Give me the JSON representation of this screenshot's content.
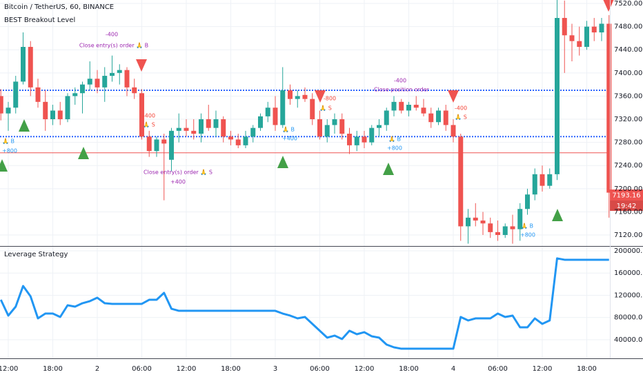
{
  "header": {
    "title": "Bitcoin / TetherUS, 60, BINANCE",
    "indicator": "BEST Breakout Level"
  },
  "price_tag": {
    "price": "7193.16",
    "countdown": "19:42"
  },
  "annotations": [
    {
      "text": "-400",
      "color": "#9c27b0"
    },
    {
      "text": "Close entry(s) order 🙏 B",
      "color": "#9c27b0"
    },
    {
      "text": "🙏 B",
      "color": "#2196f3"
    },
    {
      "text": "+800",
      "color": "#2196f3"
    },
    {
      "text": "-400",
      "color": "#f44336"
    },
    {
      "text": "🙏 S",
      "color": "#f44336"
    },
    {
      "text": "Close entry(s) order 🙏 S",
      "color": "#9c27b0"
    },
    {
      "text": "+400",
      "color": "#9c27b0"
    },
    {
      "text": "-800",
      "color": "#f44336"
    },
    {
      "text": "🙏 S",
      "color": "#f44336"
    },
    {
      "text": "🙏 B",
      "color": "#2196f3"
    },
    {
      "text": "+400",
      "color": "#2196f3"
    },
    {
      "text": "-400",
      "color": "#9c27b0"
    },
    {
      "text": "Close position order",
      "color": "#9c27b0"
    },
    {
      "text": "🙏 B",
      "color": "#2196f3"
    },
    {
      "text": "+800",
      "color": "#2196f3"
    },
    {
      "text": "-400",
      "color": "#f44336"
    },
    {
      "text": "🙏 S",
      "color": "#f44336"
    },
    {
      "text": "🙏 B",
      "color": "#2196f3"
    },
    {
      "text": "+800",
      "color": "#2196f3"
    }
  ],
  "chart_data": [
    {
      "type": "candlestick",
      "categories": [
        null,
        "12:00",
        null,
        null,
        null,
        null,
        null,
        "18:00",
        null,
        null,
        null,
        null,
        null,
        "2",
        null,
        null,
        null,
        null,
        null,
        "06:00",
        null,
        null,
        null,
        null,
        null,
        "12:00",
        null,
        null,
        null,
        null,
        null,
        "18:00",
        null,
        null,
        null,
        null,
        null,
        "3",
        null,
        null,
        null,
        null,
        null,
        "06:00",
        null,
        null,
        null,
        null,
        null,
        "12:00",
        null,
        null,
        null,
        null,
        null,
        "18:00",
        null,
        null,
        null,
        null,
        null,
        "4",
        null,
        null,
        null,
        null,
        null,
        "06:00",
        null,
        null,
        null,
        null,
        null,
        "12:00",
        null,
        null,
        null,
        null,
        null,
        "18:00",
        null,
        null,
        null
      ],
      "open": [
        7360,
        7330,
        7340,
        7385,
        7445,
        7375,
        7350,
        7320,
        7335,
        7320,
        7360,
        7365,
        7380,
        7390,
        7375,
        7395,
        7400,
        7405,
        7375,
        7365,
        7290,
        7265,
        7285,
        7250,
        7300,
        7305,
        7300,
        7295,
        7320,
        7305,
        7320,
        7290,
        7285,
        7275,
        7290,
        7305,
        7325,
        7340,
        7310,
        7370,
        7355,
        7362,
        7355,
        7320,
        7290,
        7310,
        7320,
        7295,
        7275,
        7290,
        7280,
        7305,
        7310,
        7335,
        7350,
        7335,
        7345,
        7340,
        7330,
        7315,
        7335,
        7310,
        7290,
        7135,
        7150,
        7145,
        7140,
        7125,
        7120,
        7135,
        7130,
        7165,
        7190,
        7225,
        7205,
        7225,
        7495,
        7465,
        7455,
        7445,
        7480,
        7470,
        7485
      ],
      "high": [
        7372,
        7350,
        7395,
        7470,
        7455,
        7390,
        7370,
        7345,
        7350,
        7365,
        7375,
        7385,
        7420,
        7405,
        7410,
        7430,
        7415,
        7410,
        7390,
        7372,
        7300,
        7290,
        7295,
        7305,
        7330,
        7320,
        7320,
        7330,
        7345,
        7335,
        7325,
        7300,
        7295,
        7300,
        7310,
        7330,
        7350,
        7360,
        7410,
        7380,
        7370,
        7375,
        7365,
        7335,
        7320,
        7330,
        7330,
        7305,
        7300,
        7300,
        7310,
        7320,
        7340,
        7360,
        7355,
        7350,
        7360,
        7355,
        7340,
        7340,
        7345,
        7320,
        7295,
        7165,
        7175,
        7160,
        7150,
        7145,
        7140,
        7155,
        7175,
        7200,
        7235,
        7240,
        7235,
        7540,
        7525,
        7485,
        7480,
        7490,
        7495,
        7495,
        7500
      ],
      "low": [
        7318,
        7300,
        7330,
        7380,
        7360,
        7340,
        7300,
        7310,
        7310,
        7315,
        7345,
        7330,
        7370,
        7365,
        7350,
        7385,
        7380,
        7360,
        7355,
        7285,
        7255,
        7255,
        7180,
        7230,
        7280,
        7290,
        7285,
        7280,
        7300,
        7290,
        7280,
        7275,
        7270,
        7270,
        7280,
        7300,
        7315,
        7300,
        7305,
        7345,
        7340,
        7350,
        7310,
        7285,
        7280,
        7295,
        7285,
        7260,
        7265,
        7270,
        7275,
        7290,
        7300,
        7325,
        7330,
        7325,
        7335,
        7325,
        7305,
        7310,
        7300,
        7280,
        7110,
        7105,
        7135,
        7120,
        7115,
        7110,
        7115,
        7105,
        7110,
        7155,
        7180,
        7195,
        7200,
        7215,
        7400,
        7420,
        7430,
        7440,
        7455,
        7455,
        7150
      ],
      "close": [
        7330,
        7340,
        7385,
        7445,
        7375,
        7350,
        7320,
        7335,
        7320,
        7360,
        7365,
        7380,
        7390,
        7375,
        7395,
        7400,
        7405,
        7375,
        7365,
        7290,
        7265,
        7285,
        7278,
        7300,
        7305,
        7300,
        7295,
        7320,
        7305,
        7320,
        7290,
        7285,
        7275,
        7290,
        7305,
        7325,
        7340,
        7310,
        7370,
        7355,
        7360,
        7355,
        7320,
        7290,
        7310,
        7320,
        7295,
        7275,
        7290,
        7280,
        7305,
        7310,
        7335,
        7350,
        7335,
        7345,
        7340,
        7330,
        7315,
        7335,
        7310,
        7290,
        7135,
        7150,
        7145,
        7140,
        7125,
        7120,
        7135,
        7130,
        7165,
        7190,
        7225,
        7205,
        7225,
        7495,
        7465,
        7455,
        7445,
        7480,
        7470,
        7485,
        7193.16
      ],
      "up_color": "#26a69a",
      "down_color": "#ef5350",
      "hlines": [
        {
          "value": 7370,
          "color": "#2962ff",
          "dotted": true
        },
        {
          "value": 7290,
          "color": "#2962ff",
          "dotted": true
        },
        {
          "value": 7262,
          "color": "#ef5350",
          "dotted": false
        }
      ],
      "ylim": [
        7101,
        7526
      ],
      "yticks": [
        {
          "value": 7120,
          "label": "7120.00"
        },
        {
          "value": 7160,
          "label": "7160.00"
        },
        {
          "value": 7200,
          "label": "7200.00"
        },
        {
          "value": 7240,
          "label": "7240.00"
        },
        {
          "value": 7280,
          "label": "7280.00"
        },
        {
          "value": 7320,
          "label": "7320.00"
        },
        {
          "value": 7360,
          "label": "7360.00"
        },
        {
          "value": 7400,
          "label": "7400.00"
        },
        {
          "value": 7440,
          "label": "7440.00"
        },
        {
          "value": 7480,
          "label": "7480.00"
        },
        {
          "value": 7520,
          "label": "7520.00"
        }
      ],
      "grid": true
    },
    {
      "type": "line",
      "title": "Leverage Strategy",
      "color": "#2196f3",
      "values": [
        111900,
        83400,
        99500,
        136700,
        118100,
        78400,
        87100,
        87100,
        80900,
        102000,
        99500,
        105700,
        109400,
        115600,
        105700,
        104500,
        104500,
        104500,
        104500,
        104500,
        111900,
        111900,
        124300,
        95700,
        92000,
        92000,
        92000,
        92000,
        92000,
        92000,
        92000,
        92000,
        92000,
        92000,
        92000,
        92000,
        92000,
        92000,
        87100,
        83400,
        78400,
        80900,
        68500,
        56100,
        43700,
        47400,
        41200,
        56100,
        49900,
        53600,
        46200,
        43700,
        31300,
        26300,
        23800,
        23800,
        23800,
        23800,
        23800,
        23800,
        23800,
        23800,
        80900,
        74700,
        78400,
        78400,
        78400,
        87100,
        80900,
        83400,
        62300,
        62300,
        78400,
        68500,
        74700,
        186400,
        183900,
        183900,
        183900,
        183900,
        183900,
        183900,
        183900
      ],
      "ylim": [
        6500,
        207400
      ],
      "yticks": [
        {
          "value": 40000,
          "label": "40000.00"
        },
        {
          "value": 80000,
          "label": "80000.00"
        },
        {
          "value": 120000,
          "label": "120000.00"
        },
        {
          "value": 160000,
          "label": "160000.00"
        },
        {
          "value": 200000,
          "label": "200000.00"
        }
      ],
      "grid": true
    }
  ]
}
